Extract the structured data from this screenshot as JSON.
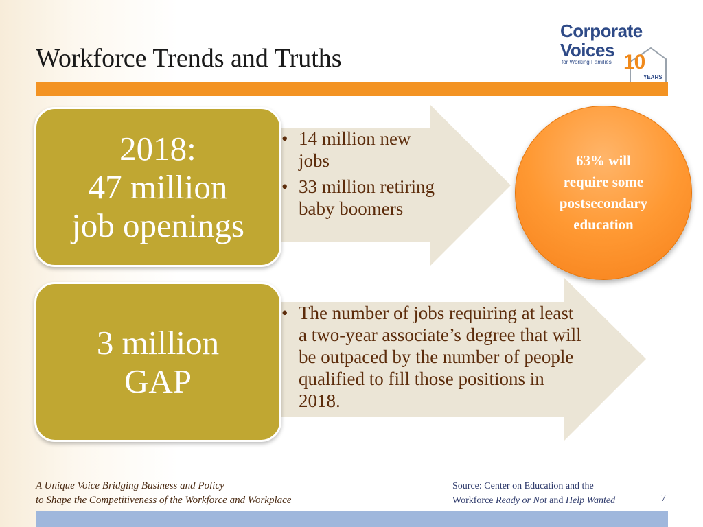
{
  "slide": {
    "title": "Workforce Trends and Truths",
    "page_number": "7"
  },
  "logo": {
    "line1": "Corporate",
    "line2": "Voices",
    "tagline": "for Working Families",
    "anniversary_number": "10",
    "anniversary_label": "YEARS"
  },
  "block1": {
    "heading_lines": [
      "2018:",
      "47 million",
      "job openings"
    ],
    "bullets": [
      "14 million new jobs",
      "33 million retiring baby boomers"
    ]
  },
  "callout": {
    "lines": [
      "63% will",
      "require some",
      "postsecondary",
      "education"
    ]
  },
  "block2": {
    "heading_lines": [
      "3 million",
      "GAP"
    ],
    "bullets": [
      "The number of jobs requiring at least a two-year associate’s degree that will be outpaced by the number of people qualified to fill those positions in 2018."
    ]
  },
  "footer": {
    "tagline_lines": [
      "A Unique Voice Bridging Business and Policy",
      "to Shape the Competitiveness of the Workforce and Workplace"
    ],
    "source_prefix": "Source: Center on Education and the",
    "source_line2_start": "Workforce ",
    "source_title1": "Ready or Not",
    "source_and": " and ",
    "source_title2": "Help Wanted"
  },
  "colors": {
    "accent_orange": "#f39323",
    "box_gold": "#c0a732",
    "arrow_beige": "#ebe5d6",
    "bullet_text": "#5c2c0b",
    "callout_orange": "#ff9933",
    "footer_blue": "#9fb7dc",
    "logo_blue": "#2e4a87"
  }
}
